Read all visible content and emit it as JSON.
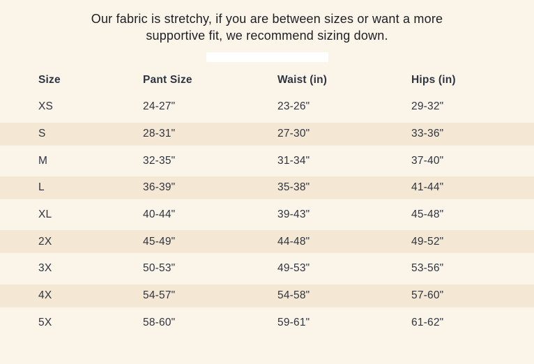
{
  "note": {
    "lines": [
      "Our fabric is stretchy, if you are between sizes or want a more",
      "supportive fit, we recommend sizing down."
    ]
  },
  "table": {
    "columns": [
      "Size",
      "Pant Size",
      "Waist (in)",
      "Hips (in)"
    ],
    "rows": [
      [
        "XS",
        "24-27\"",
        "23-26\"",
        "29-32\""
      ],
      [
        "S",
        "28-31\"",
        "27-30\"",
        "33-36\""
      ],
      [
        "M",
        "32-35\"",
        "31-34\"",
        "37-40\""
      ],
      [
        "L",
        "36-39\"",
        "35-38\"",
        "41-44\""
      ],
      [
        "XL",
        "40-44\"",
        "39-43\"",
        "45-48\""
      ],
      [
        "2X",
        "45-49\"",
        "44-48\"",
        "49-52\""
      ],
      [
        "3X",
        "50-53\"",
        "49-53\"",
        "53-56\""
      ],
      [
        "4X",
        "54-57\"",
        "54-58\"",
        "57-60\""
      ],
      [
        "5X",
        "58-60\"",
        "59-61\"",
        "61-62\""
      ]
    ]
  },
  "colors": {
    "background": "#fbf4e9",
    "row_stripe": "#f4e8d5",
    "divider_bar": "#ffffff",
    "note_text": "#1c1f24",
    "table_text": "#2e3440"
  }
}
